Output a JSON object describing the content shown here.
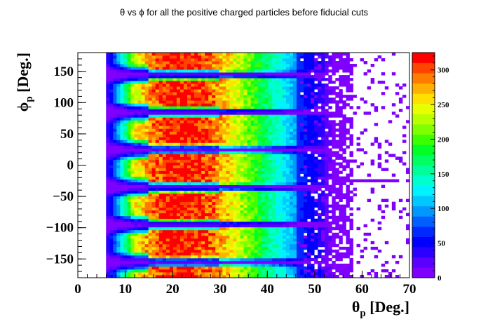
{
  "chart_data": {
    "type": "heatmap",
    "title": "θ vs ϕ for all the positive charged particles before fiducial cuts",
    "xlabel": {
      "main": "θ",
      "sub": "p",
      "rest": " [Deg.]"
    },
    "ylabel": {
      "main": "ϕ",
      "sub": "p",
      "rest": " [Deg.]"
    },
    "xlim": [
      0,
      70
    ],
    "ylim": [
      -180,
      180
    ],
    "zlim": [
      0,
      325
    ],
    "x_ticks": [
      "0",
      "10",
      "20",
      "30",
      "40",
      "50",
      "60",
      "70"
    ],
    "y_ticks": [
      "−150",
      "−100",
      "−50",
      "0",
      "50",
      "100",
      "150"
    ],
    "y_tick_values": [
      -150,
      -100,
      -50,
      0,
      50,
      100,
      150
    ],
    "z_ticks": [
      "0",
      "50",
      "100",
      "150",
      "200",
      "250",
      "300"
    ],
    "z_tick_values": [
      0,
      50,
      100,
      150,
      200,
      250,
      300
    ],
    "palette": [
      "#7f00ff",
      "#5b00ff",
      "#2b00ff",
      "#0000ff",
      "#0028ff",
      "#0060ff",
      "#0098ff",
      "#00c8ff",
      "#00f2ff",
      "#00ffd0",
      "#00ff9a",
      "#00ff60",
      "#00ff24",
      "#3cff00",
      "#7fff00",
      "#b8ff00",
      "#e8ff00",
      "#ffe000",
      "#ffb000",
      "#ff7c00",
      "#ff4400",
      "#ff0000"
    ],
    "sector_gap_centers_deg": [
      -155,
      -95,
      -35,
      25,
      85,
      145
    ],
    "density_peak_theta_deg": 21,
    "density_peak_value": 320,
    "grid": false,
    "legend": "color-scale-right"
  }
}
